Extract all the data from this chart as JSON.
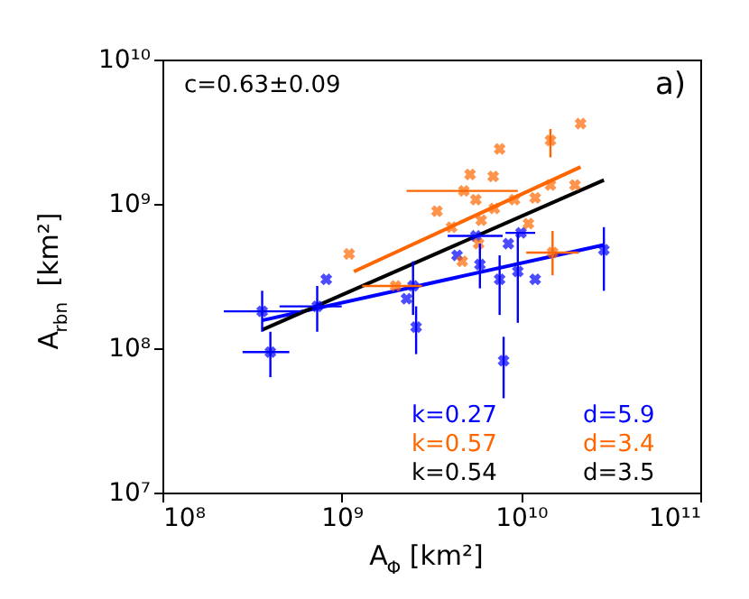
{
  "chart_data": {
    "type": "scatter",
    "xlabel": "A$_{Φ}$ [km²]",
    "ylabel": "A$_{rbn}$ [km²]",
    "log": "xy",
    "xlim": [
      100000000.0,
      100000000000.0
    ],
    "ylim": [
      10000000.0,
      10000000000.0
    ],
    "xticks": [
      {
        "value": 100000000.0,
        "label": "10⁸"
      },
      {
        "value": 1000000000.0,
        "label": "10⁹"
      },
      {
        "value": 10000000000.0,
        "label": "10¹⁰"
      },
      {
        "value": 100000000000.0,
        "label": "10¹¹"
      }
    ],
    "yticks": [
      {
        "value": 10000000.0,
        "label": "10⁷"
      },
      {
        "value": 100000000.0,
        "label": "10⁸"
      },
      {
        "value": 1000000000.0,
        "label": "10⁹"
      },
      {
        "value": 10000000000.0,
        "label": "10¹⁰"
      }
    ],
    "grid": false,
    "annotations": [
      "c=0.63±0.09",
      "a)",
      "k=0.27",
      "d=5.9",
      "k=0.57",
      "d=3.4",
      "k=0.54",
      "d=3.5"
    ],
    "series": [
      {
        "marker": "cross",
        "color": "#0000ff",
        "x": [
          360000000.0,
          400000000.0,
          730000000.0,
          820000000.0,
          2500000000.0,
          2300000000.0,
          2600000000.0,
          4400000000.0,
          5600000000.0,
          5900000000.0,
          7600000000.0,
          8000000000.0,
          8500000000.0,
          9600000000.0,
          10000000000.0,
          12000000000.0,
          29000000000.0
        ],
        "values": [
          180000000.0,
          94000000.0,
          195000000.0,
          300000000.0,
          270000000.0,
          220000000.0,
          140000000.0,
          440000000.0,
          600000000.0,
          380000000.0,
          300000000.0,
          82000000.0,
          530000000.0,
          340000000.0,
          630000000.0,
          300000000.0,
          480000000.0
        ],
        "errors": [
          [
            130000000.0,
            250000000.0
          ],
          [
            63000000.0,
            130000000.0
          ],
          [
            130000000.0,
            270000000.0
          ],
          null,
          [
            170000000.0,
            400000000.0
          ],
          null,
          [
            91000000.0,
            195000000.0
          ],
          null,
          null,
          [
            260000000.0,
            530000000.0
          ],
          [
            170000000.0,
            440000000.0
          ],
          [
            45000000.0,
            120000000.0
          ],
          null,
          [
            150000000.0,
            630000000.0
          ],
          null,
          null,
          [
            250000000.0,
            690000000.0
          ]
        ],
        "xerrors": [
          [
            220000000.0,
            590000000.0
          ],
          [
            280000000.0,
            510000000.0
          ],
          [
            450000000.0,
            1000000000.0
          ],
          null,
          null,
          null,
          null,
          null,
          [
            3900000000.0,
            7900000000.0
          ],
          null,
          null,
          null,
          null,
          null,
          [
            8200000000.0,
            12000000000.0
          ],
          null,
          null
        ]
      },
      {
        "marker": "cross",
        "color": "#ff6600",
        "x": [
          1100000000.0,
          2000000000.0,
          3400000000.0,
          4100000000.0,
          4800000000.0,
          5200000000.0,
          5600000000.0,
          4700000000.0,
          6000000000.0,
          5800000000.0,
          7000000000.0,
          7100000000.0,
          7600000000.0,
          9200000000.0,
          11000000000.0,
          12000000000.0,
          14600000000.0,
          14600000000.0,
          15000000000.0,
          20000000000.0,
          21500000000.0
        ],
        "values": [
          450000000.0,
          270000000.0,
          890000000.0,
          690000000.0,
          1230000000.0,
          1600000000.0,
          1070000000.0,
          400000000.0,
          770000000.0,
          530000000.0,
          1550000000.0,
          930000000.0,
          2400000000.0,
          1070000000.0,
          730000000.0,
          1100000000.0,
          1350000000.0,
          2750000000.0,
          460000000.0,
          1350000000.0,
          3600000000.0
        ],
        "errors": [
          null,
          null,
          null,
          null,
          null,
          null,
          null,
          null,
          null,
          null,
          null,
          null,
          null,
          null,
          null,
          null,
          null,
          [
            2100000000.0,
            3300000000.0
          ],
          [
            320000000.0,
            650000000.0
          ],
          null,
          null
        ],
        "xerrors": [
          null,
          [
            1300000000.0,
            2800000000.0
          ],
          null,
          null,
          [
            2300000000.0,
            9600000000.0
          ],
          null,
          null,
          null,
          null,
          null,
          null,
          null,
          null,
          null,
          null,
          null,
          null,
          null,
          [
            10700000000.0,
            21000000000.0
          ],
          null,
          null
        ]
      },
      {
        "type": "line",
        "color": "#0000ff",
        "x": [
          360000000.0,
          29000000000.0
        ],
        "values": [
          156000000.0,
          520000000.0
        ]
      },
      {
        "type": "line",
        "color": "#ff6600",
        "x": [
          1170000000.0,
          21500000000.0
        ],
        "values": [
          340000000.0,
          1800000000.0
        ]
      },
      {
        "type": "line",
        "color": "#000000",
        "x": [
          360000000.0,
          29000000000.0
        ],
        "values": [
          134000000.0,
          1460000000.0
        ]
      }
    ]
  }
}
